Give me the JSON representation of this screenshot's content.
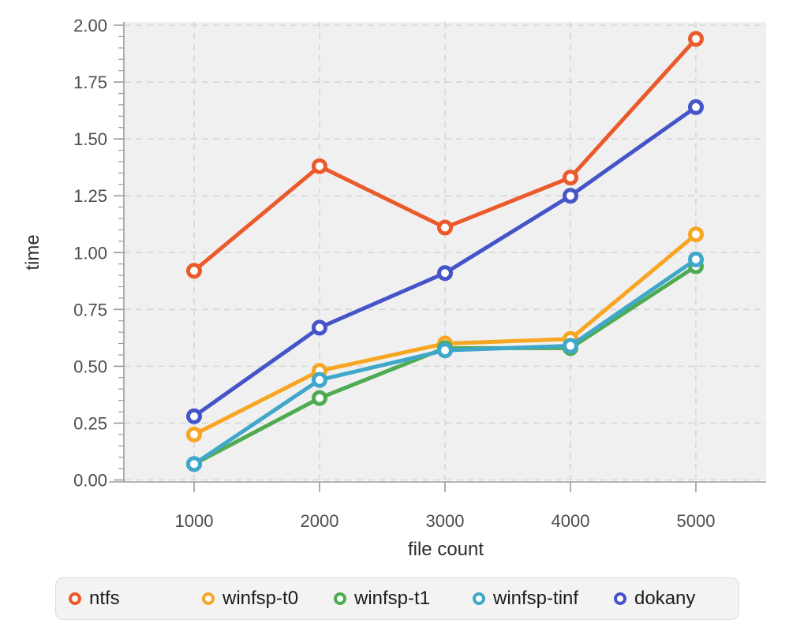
{
  "chart_data": {
    "type": "line",
    "x": [
      1000,
      2000,
      3000,
      4000,
      5000
    ],
    "series": [
      {
        "name": "ntfs",
        "color": "#EA5A2B",
        "values": [
          0.92,
          1.38,
          1.11,
          1.33,
          1.94
        ]
      },
      {
        "name": "winfsp-t0",
        "color": "#F7A622",
        "values": [
          0.2,
          0.48,
          0.6,
          0.62,
          1.08
        ]
      },
      {
        "name": "winfsp-t1",
        "color": "#4FAB52",
        "values": [
          0.07,
          0.36,
          0.58,
          0.58,
          0.94
        ]
      },
      {
        "name": "winfsp-tinf",
        "color": "#3FA7C9",
        "values": [
          0.07,
          0.44,
          0.57,
          0.59,
          0.97
        ]
      },
      {
        "name": "dokany",
        "color": "#4554C8",
        "values": [
          0.28,
          0.67,
          0.91,
          1.25,
          1.64
        ]
      }
    ],
    "title": "",
    "xlabel": "file count",
    "ylabel": "time",
    "xlim": [
      450,
      5550
    ],
    "ylim": [
      0,
      2.0
    ],
    "x_ticks": [
      1000,
      2000,
      3000,
      4000,
      5000
    ],
    "x_tick_labels": [
      "1000",
      "2000",
      "3000",
      "4000",
      "5000"
    ],
    "y_ticks": [
      0,
      0.25,
      0.5,
      0.75,
      1.0,
      1.25,
      1.5,
      1.75,
      2.0
    ],
    "y_tick_labels": [
      "0.00",
      "0.25",
      "0.50",
      "0.75",
      "1.00",
      "1.25",
      "1.50",
      "1.75",
      "2.00"
    ],
    "y_minor_tick_step": 0.05,
    "grid": true,
    "grid_style": "dashed",
    "marker": "open-circle",
    "legend_position": "bottom",
    "colors": {
      "plot_background": "#F0F0F0",
      "grid_line": "#D6D6D6",
      "axis_line": "#9B9B9B",
      "tick_label": "#4D4D4D",
      "axis_title": "#2E2E2E",
      "legend_background": "#F3F3F3",
      "legend_border": "#DCDCDC",
      "legend_text": "#1C1C1C",
      "marker_fill": "#FFFFFF"
    }
  }
}
